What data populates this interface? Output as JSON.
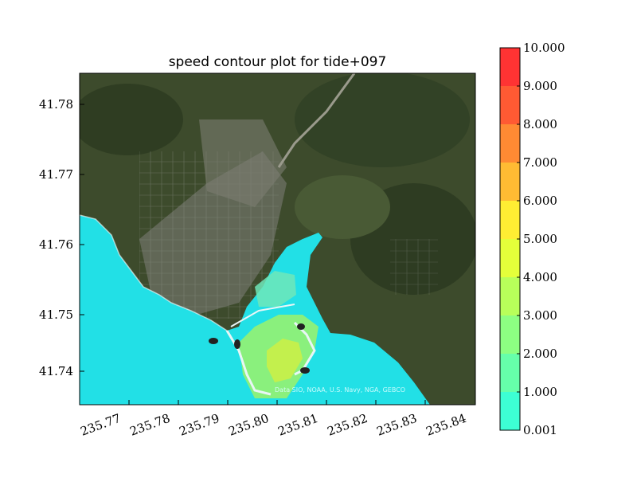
{
  "title": "speed contour plot for tide+097",
  "axes": {
    "y_ticks": [
      "41.78",
      "41.77",
      "41.76",
      "41.75",
      "41.74"
    ],
    "x_ticks": [
      "235.77",
      "235.78",
      "235.79",
      "235.80",
      "235.81",
      "235.82",
      "235.83",
      "235.84"
    ]
  },
  "attribution": "Data SIO, NOAA, U.S. Navy, NGA, GEBCO",
  "colorbar": {
    "labels": [
      "10.000",
      "9.000",
      "8.000",
      "7.000",
      "6.000",
      "5.000",
      "4.000",
      "3.000",
      "2.000",
      "1.000",
      "0.001"
    ],
    "colors": [
      "#ff3333",
      "#ff5a33",
      "#ff8a33",
      "#ffbb33",
      "#ffee33",
      "#e4ff3a",
      "#b8ff5a",
      "#8dff82",
      "#66ffaa",
      "#3dffd4",
      "#1effff"
    ]
  },
  "colors": {
    "water": "#22e0e6",
    "land": "#3f4f2e"
  }
}
